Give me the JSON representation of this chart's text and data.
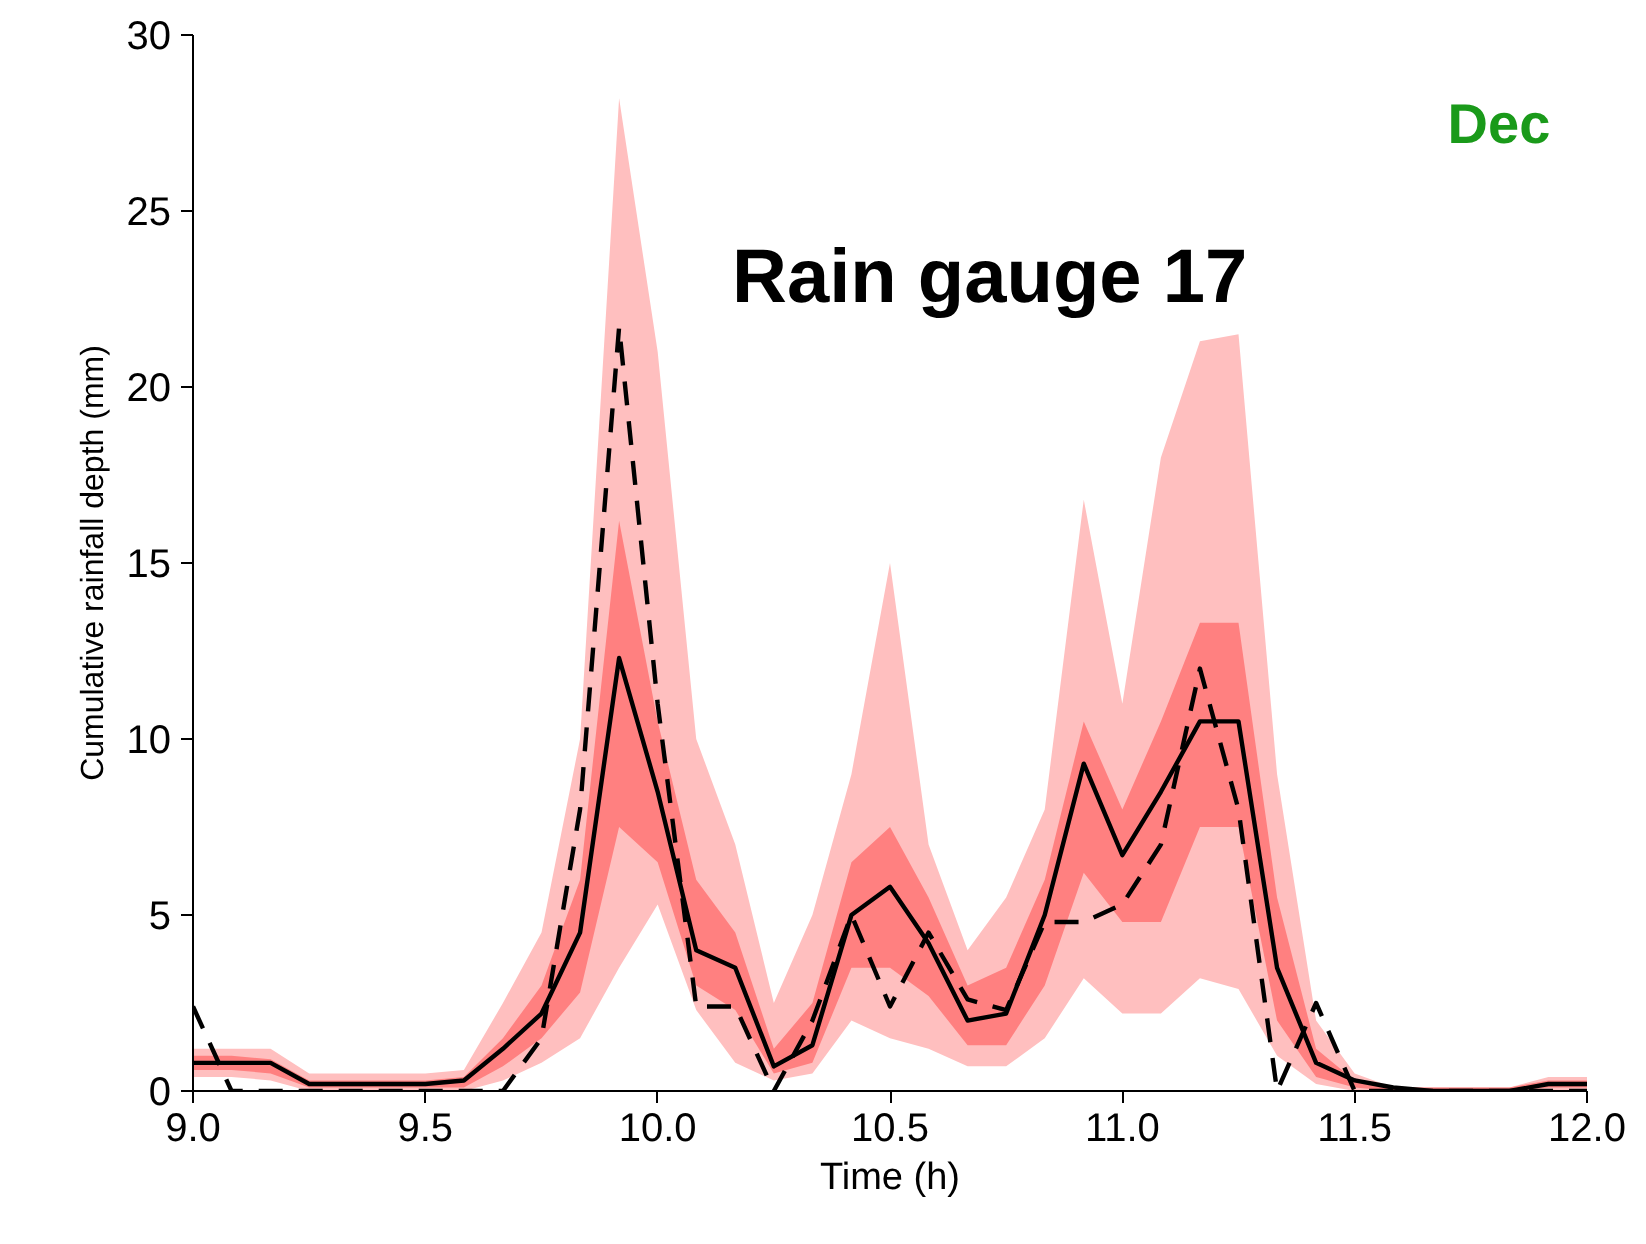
{
  "chart_data": {
    "type": "line",
    "title": "Rain gauge 17",
    "xlabel": "Time (h)",
    "ylabel": "Cumulative rainfall depth (mm)",
    "annotations": [
      "Dec"
    ],
    "x": [
      9.0,
      9.083,
      9.167,
      9.25,
      9.333,
      9.417,
      9.5,
      9.583,
      9.667,
      9.75,
      9.833,
      9.917,
      10.0,
      10.083,
      10.167,
      10.25,
      10.333,
      10.417,
      10.5,
      10.583,
      10.667,
      10.75,
      10.833,
      10.917,
      11.0,
      11.083,
      11.167,
      11.25,
      11.333,
      11.417,
      11.5,
      11.583,
      11.667,
      11.75,
      11.833,
      11.917,
      12.0
    ],
    "series": [
      {
        "color": "#000000",
        "line_style": "dashed",
        "values": [
          2.4,
          0,
          0,
          0,
          0,
          0,
          0,
          0,
          0,
          1.5,
          8,
          21.7,
          11,
          2.4,
          2.4,
          0,
          2.0,
          5.0,
          2.4,
          4.5,
          2.6,
          2.3,
          4.8,
          4.8,
          5.3,
          7.0,
          12.0,
          8.0,
          0,
          2.5,
          0,
          0,
          0,
          0,
          0,
          0,
          0
        ],
        "lower": [
          0.4,
          0.4,
          0.3,
          0,
          0,
          0,
          0,
          0,
          0.3,
          0.8,
          1.5,
          3.5,
          5.3,
          2.3,
          0.8,
          0.3,
          0.5,
          2.0,
          1.5,
          1.2,
          0.7,
          0.7,
          1.5,
          3.2,
          2.2,
          2.2,
          3.2,
          2.9,
          1.0,
          0.2,
          0,
          0,
          0,
          0,
          0,
          0,
          0
        ],
        "upper": [
          1.2,
          1.2,
          1.2,
          0.5,
          0.5,
          0.5,
          0.5,
          0.6,
          2.5,
          4.5,
          10,
          28.2,
          21,
          10,
          7,
          2.5,
          5,
          9,
          15,
          7,
          4,
          5.5,
          8,
          16.8,
          11,
          18,
          21.3,
          21.5,
          9,
          2,
          0.5,
          0.1,
          0.1,
          0.1,
          0.1,
          0.4,
          0.4
        ]
      },
      {
        "color": "#000000",
        "line_style": "solid",
        "values": [
          0.8,
          0.8,
          0.8,
          0.2,
          0.2,
          0.2,
          0.2,
          0.3,
          1.2,
          2.2,
          4.5,
          12.3,
          8.5,
          4.0,
          3.5,
          0.7,
          1.3,
          5.0,
          5.8,
          4.2,
          2.0,
          2.2,
          5.0,
          9.3,
          6.7,
          8.5,
          10.5,
          10.5,
          3.5,
          0.8,
          0.3,
          0.1,
          0,
          0,
          0,
          0.2,
          0.2
        ],
        "lower": [
          0.6,
          0.6,
          0.5,
          0.1,
          0.1,
          0.1,
          0.1,
          0.1,
          0.7,
          1.5,
          2.8,
          7.5,
          6.5,
          3.0,
          2.3,
          0.5,
          0.8,
          3.5,
          3.5,
          2.7,
          1.3,
          1.3,
          3.0,
          6.2,
          4.8,
          4.8,
          7.5,
          7.5,
          2.0,
          0.4,
          0.1,
          0,
          0,
          0,
          0,
          0.1,
          0.1
        ],
        "upper": [
          1.0,
          1.0,
          0.9,
          0.3,
          0.3,
          0.3,
          0.3,
          0.4,
          1.5,
          3,
          6,
          16.2,
          10.5,
          6,
          4.5,
          1.2,
          2.5,
          6.5,
          7.5,
          5.5,
          3.0,
          3.5,
          6.0,
          10.5,
          8.0,
          10.5,
          13.3,
          13.3,
          5.5,
          1.2,
          0.3,
          0.1,
          0.1,
          0.1,
          0.1,
          0.3,
          0.3
        ]
      }
    ],
    "xlim": [
      9.0,
      12.0
    ],
    "ylim": [
      0,
      30
    ],
    "xticks": [
      {
        "value": 9.0,
        "label": "9.0"
      },
      9.5,
      {
        "value": 10.0,
        "label": "10.0"
      },
      10.5,
      {
        "value": 11.0,
        "label": "11.0"
      },
      11.5,
      {
        "value": 12.0,
        "label": "12.0"
      }
    ],
    "yticks": [
      0,
      5,
      10,
      15,
      20,
      25,
      30
    ],
    "grid": false
  }
}
